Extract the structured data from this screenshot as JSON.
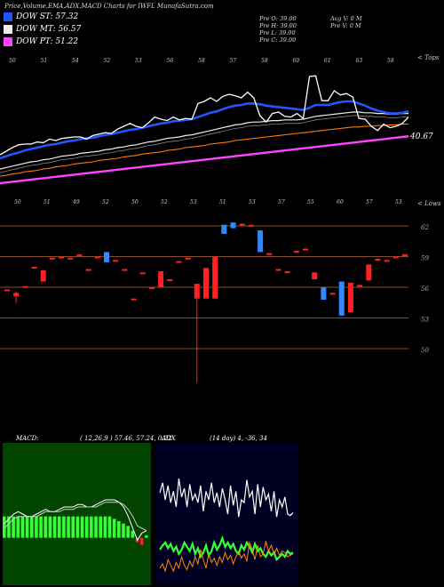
{
  "header": "Price,Volume,EMA,ADX,MACD Charts for IWFL MunafaSutra.com",
  "legend": [
    {
      "label": "DOW ST: 57.32",
      "color": "#2255ff"
    },
    {
      "label": "DOW MT: 56.57",
      "color": "#eeeeee"
    },
    {
      "label": "DOW PT: 51.22",
      "color": "#ff44ff"
    }
  ],
  "ohlc": {
    "open": "Pre O: 39.00",
    "high": "Pre H: 39.00",
    "low": "Pre L: 39.00",
    "close": "Pre C: 39.00",
    "avg_vol": "Avg V: 0 M",
    "pre_vol": "Pre V: 0 M"
  },
  "colors": {
    "ema_short": "#2255ff",
    "ema_long": "#ff44ff",
    "up": "#ff2222",
    "down": "#3388ff",
    "grid": "#b86a30",
    "adx_plus": "#33ff33",
    "adx_minus": "#ff8800"
  },
  "price_panel": {
    "top_label": "< Tops",
    "bottom_label": "< Lows",
    "last_price": "40.67",
    "top_labels": [
      "50",
      "51",
      "54",
      "52",
      "53",
      "56",
      "58",
      "57",
      "58",
      "60",
      "61",
      "63",
      "58"
    ],
    "bottom_labels": [
      "50",
      "51",
      "49",
      "52",
      "50",
      "52",
      "53",
      "51",
      "53",
      "57",
      "55",
      "60",
      "57",
      "53"
    ]
  },
  "chart_data": [
    {
      "type": "line",
      "title": "Price / EMA",
      "series": [
        {
          "name": "Price",
          "color": "#ffffff",
          "values": [
            37,
            37.5,
            38,
            38.4,
            38.5,
            38.5,
            38.8,
            38.7,
            39.2,
            39,
            39.3,
            39.4,
            39.5,
            39.5,
            39.2,
            39.7,
            39.9,
            40.1,
            40,
            40.6,
            41,
            41.4,
            41,
            40.8,
            41.5,
            42.3,
            42,
            41.8,
            42.3,
            41.9,
            42.1,
            42,
            44.2,
            44.5,
            45,
            44.5,
            45.2,
            45.5,
            45.3,
            45,
            45.8,
            45,
            42.5,
            41.6,
            42.8,
            43,
            42.4,
            42.3,
            42.8,
            42.1,
            48,
            48.1,
            44.6,
            44.6,
            46,
            45.4,
            45.6,
            45.1,
            42.1,
            42,
            41,
            40.4,
            41.3,
            40.8,
            41,
            41.4,
            42.3
          ]
        },
        {
          "name": "DOW ST",
          "color": "#2255ff",
          "values": [
            36.5,
            36.8,
            37.1,
            37.3,
            37.6,
            37.8,
            38,
            38.2,
            38.4,
            38.5,
            38.7,
            38.9,
            39,
            39.2,
            39.3,
            39.4,
            39.6,
            39.8,
            39.9,
            40.1,
            40.3,
            40.5,
            40.6,
            40.8,
            41,
            41.2,
            41.4,
            41.5,
            41.7,
            41.8,
            41.9,
            42,
            42.3,
            42.6,
            42.9,
            43.1,
            43.4,
            43.7,
            43.9,
            44,
            44.2,
            44.2,
            44.1,
            43.9,
            43.8,
            43.7,
            43.6,
            43.5,
            43.4,
            43.3,
            43.6,
            44,
            44,
            44,
            44.2,
            44.4,
            44.5,
            44.5,
            44.2,
            43.9,
            43.5,
            43.2,
            43,
            42.8,
            42.8,
            42.9,
            43.1
          ]
        },
        {
          "name": "DOW MT",
          "color": "#eeeeee",
          "values": [
            35,
            35.2,
            35.4,
            35.6,
            35.8,
            36,
            36.1,
            36.3,
            36.4,
            36.6,
            36.8,
            36.9,
            37,
            37.2,
            37.3,
            37.4,
            37.5,
            37.7,
            37.8,
            38,
            38.1,
            38.3,
            38.4,
            38.6,
            38.8,
            38.9,
            39.1,
            39.3,
            39.4,
            39.5,
            39.7,
            39.8,
            40,
            40.2,
            40.4,
            40.6,
            40.8,
            41,
            41.2,
            41.3,
            41.5,
            41.6,
            41.6,
            41.7,
            41.8,
            41.8,
            41.9,
            41.9,
            41.9,
            42,
            42.2,
            42.4,
            42.5,
            42.6,
            42.7,
            42.8,
            42.9,
            43,
            43,
            42.9,
            42.9,
            42.8,
            42.8,
            42.7,
            42.7,
            42.8,
            42.8
          ]
        },
        {
          "name": "EMA 50",
          "color": "#ff7700",
          "values": [
            34,
            34.1,
            34.3,
            34.4,
            34.6,
            34.7,
            34.8,
            35,
            35.1,
            35.3,
            35.4,
            35.5,
            35.7,
            35.8,
            35.9,
            36,
            36.2,
            36.3,
            36.4,
            36.5,
            36.7,
            36.8,
            36.9,
            37.1,
            37.2,
            37.3,
            37.4,
            37.6,
            37.7,
            37.8,
            38,
            38.1,
            38.2,
            38.3,
            38.5,
            38.6,
            38.7,
            38.8,
            39,
            39.1,
            39.2,
            39.3,
            39.4,
            39.5,
            39.6,
            39.7,
            39.8,
            39.9,
            40,
            40.1,
            40.2,
            40.3,
            40.4,
            40.5,
            40.6,
            40.7,
            40.8,
            40.9,
            40.9,
            41,
            41,
            41.1,
            41.1,
            41.2,
            41.2,
            41.3,
            41.3
          ]
        },
        {
          "name": "DOW PT",
          "color": "#ff44ff",
          "values": [
            33,
            33.1,
            33.2,
            33.3,
            33.4,
            33.5,
            33.6,
            33.7,
            33.8,
            33.9,
            34,
            34.1,
            34.2,
            34.3,
            34.4,
            34.5,
            34.6,
            34.7,
            34.8,
            34.9,
            35,
            35.1,
            35.2,
            35.3,
            35.4,
            35.5,
            35.6,
            35.7,
            35.8,
            35.9,
            36,
            36.1,
            36.2,
            36.3,
            36.4,
            36.5,
            36.6,
            36.7,
            36.8,
            36.9,
            37,
            37.1,
            37.2,
            37.3,
            37.4,
            37.5,
            37.6,
            37.7,
            37.8,
            37.9,
            38,
            38.1,
            38.2,
            38.3,
            38.4,
            38.5,
            38.6,
            38.7,
            38.8,
            38.9,
            39,
            39.1,
            39.2,
            39.3,
            39.4,
            39.5,
            39.6
          ]
        }
      ]
    },
    {
      "type": "candlestick",
      "title": "Short candles",
      "y_ticks": [
        "62",
        "59",
        "56",
        "53",
        "50"
      ],
      "candles": [
        {
          "i": 0,
          "o": 55.8,
          "c": 55.8,
          "h": 55.8,
          "l": 55.8
        },
        {
          "i": 1,
          "o": 55.2,
          "c": 55.5,
          "h": 55.6,
          "l": 54.6
        },
        {
          "i": 2,
          "o": 56.1,
          "c": 56.1,
          "h": 56.1,
          "l": 56.1
        },
        {
          "i": 3,
          "o": 57.8,
          "c": 57.8,
          "h": 57.8,
          "l": 57.8
        },
        {
          "i": 4,
          "o": 56.5,
          "c": 57.5,
          "h": 57.5,
          "l": 56.5
        },
        {
          "i": 5,
          "o": 58.6,
          "c": 58.6,
          "h": 58.6,
          "l": 58.6
        },
        {
          "i": 6,
          "o": 58.7,
          "c": 58.7,
          "h": 58.7,
          "l": 58.7
        },
        {
          "i": 7,
          "o": 58.6,
          "c": 58.6,
          "h": 58.6,
          "l": 58.6
        },
        {
          "i": 8,
          "o": 58.9,
          "c": 58.9,
          "h": 58.9,
          "l": 58.9
        },
        {
          "i": 9,
          "o": 57.6,
          "c": 57.6,
          "h": 57.6,
          "l": 57.6
        },
        {
          "i": 10,
          "o": 58.7,
          "c": 58.7,
          "h": 58.7,
          "l": 58.7
        },
        {
          "i": 11,
          "o": 59.1,
          "c": 58.2,
          "h": 59.1,
          "l": 58.2
        },
        {
          "i": 12,
          "o": 58.4,
          "c": 58.4,
          "h": 58.4,
          "l": 58.4
        },
        {
          "i": 13,
          "o": 57.6,
          "c": 57.6,
          "h": 57.6,
          "l": 57.6
        },
        {
          "i": 14,
          "o": 55.0,
          "c": 55.0,
          "h": 55.0,
          "l": 55.0
        },
        {
          "i": 15,
          "o": 57.3,
          "c": 57.3,
          "h": 57.3,
          "l": 57.3
        },
        {
          "i": 16,
          "o": 56.0,
          "c": 56.0,
          "h": 56.0,
          "l": 56.0
        },
        {
          "i": 17,
          "o": 56.0,
          "c": 57.4,
          "h": 57.4,
          "l": 56.0
        },
        {
          "i": 18,
          "o": 56.7,
          "c": 56.7,
          "h": 56.7,
          "l": 56.7
        },
        {
          "i": 19,
          "o": 58.3,
          "c": 58.3,
          "h": 58.3,
          "l": 58.3
        },
        {
          "i": 20,
          "o": 58.6,
          "c": 58.6,
          "h": 58.6,
          "l": 58.6
        },
        {
          "i": 21,
          "o": 55.0,
          "c": 56.3,
          "h": 56.3,
          "l": 47.6
        },
        {
          "i": 22,
          "o": 55.0,
          "c": 57.7,
          "h": 57.7,
          "l": 55.0
        },
        {
          "i": 23,
          "o": 55.0,
          "c": 58.7,
          "h": 58.7,
          "l": 55.0
        },
        {
          "i": 24,
          "o": 61.5,
          "c": 60.7,
          "h": 61.5,
          "l": 60.7
        },
        {
          "i": 25,
          "o": 61.7,
          "c": 61.2,
          "h": 61.7,
          "l": 61.2
        },
        {
          "i": 26,
          "o": 61.6,
          "c": 61.6,
          "h": 61.6,
          "l": 61.6
        },
        {
          "i": 27,
          "o": 61.5,
          "c": 61.5,
          "h": 61.5,
          "l": 61.5
        },
        {
          "i": 28,
          "o": 61.0,
          "c": 59.1,
          "h": 61.0,
          "l": 59.1
        },
        {
          "i": 29,
          "o": 59.0,
          "c": 59.0,
          "h": 59.0,
          "l": 59.0
        },
        {
          "i": 30,
          "o": 57.6,
          "c": 57.6,
          "h": 57.6,
          "l": 57.6
        },
        {
          "i": 31,
          "o": 57.4,
          "c": 57.4,
          "h": 57.4,
          "l": 57.4
        },
        {
          "i": 32,
          "o": 59.2,
          "c": 59.2,
          "h": 59.2,
          "l": 59.2
        },
        {
          "i": 33,
          "o": 59.4,
          "c": 59.4,
          "h": 59.4,
          "l": 59.4
        },
        {
          "i": 34,
          "o": 56.7,
          "c": 57.3,
          "h": 57.3,
          "l": 56.7
        },
        {
          "i": 35,
          "o": 56.0,
          "c": 54.9,
          "h": 56.0,
          "l": 54.9
        },
        {
          "i": 36,
          "o": 55.5,
          "c": 55.5,
          "h": 55.5,
          "l": 55.5
        },
        {
          "i": 37,
          "o": 56.5,
          "c": 53.5,
          "h": 56.5,
          "l": 53.5
        },
        {
          "i": 38,
          "o": 53.8,
          "c": 56.4,
          "h": 56.4,
          "l": 53.8
        },
        {
          "i": 39,
          "o": 56.2,
          "c": 56.2,
          "h": 56.2,
          "l": 56.2
        },
        {
          "i": 40,
          "o": 56.6,
          "c": 58.0,
          "h": 58.0,
          "l": 56.6
        },
        {
          "i": 41,
          "o": 58.5,
          "c": 58.5,
          "h": 58.5,
          "l": 58.5
        },
        {
          "i": 42,
          "o": 58.4,
          "c": 58.4,
          "h": 58.4,
          "l": 58.4
        },
        {
          "i": 43,
          "o": 58.7,
          "c": 58.7,
          "h": 58.7,
          "l": 58.7
        },
        {
          "i": 44,
          "o": 58.9,
          "c": 58.9,
          "h": 58.9,
          "l": 58.9
        }
      ]
    },
    {
      "type": "line",
      "title": "MACD",
      "label": "MACD:",
      "params": "( 12,26,9 ) 57.46, 57.24, 0.22",
      "series": [
        {
          "name": "MACD",
          "color": "#ffffff",
          "values": [
            0.6,
            0.8,
            1.0,
            1.1,
            1.0,
            0.9,
            0.9,
            1.0,
            1.1,
            1.2,
            1.1,
            1.1,
            1.2,
            1.3,
            1.3,
            1.3,
            1.4,
            1.4,
            1.3,
            1.3,
            1.4,
            1.5,
            1.6,
            1.6,
            1.6,
            1.5,
            1.3,
            0.9,
            0.4,
            -0.1,
            0.2,
            0.3
          ]
        },
        {
          "name": "Signal",
          "color": "#cccccc",
          "values": [
            0.4,
            0.6,
            0.8,
            0.9,
            0.9,
            0.9,
            0.9,
            0.9,
            1.0,
            1.1,
            1.1,
            1.1,
            1.1,
            1.2,
            1.2,
            1.2,
            1.3,
            1.3,
            1.3,
            1.3,
            1.3,
            1.4,
            1.5,
            1.5,
            1.5,
            1.5,
            1.4,
            1.2,
            0.9,
            0.5,
            0.4,
            0.3
          ]
        },
        {
          "name": "Histogram",
          "color": "#33ff33",
          "values": [
            0.9,
            0.9,
            0.9,
            0.9,
            0.9,
            0.9,
            0.9,
            0.9,
            0.9,
            0.9,
            0.9,
            0.9,
            0.9,
            0.9,
            0.9,
            0.9,
            0.9,
            0.9,
            0.9,
            0.9,
            0.9,
            0.9,
            0.9,
            0.9,
            0.8,
            0.7,
            0.6,
            0.5,
            0.3,
            -0.2,
            -0.3,
            0.1
          ]
        }
      ]
    },
    {
      "type": "line",
      "title": "ADX",
      "label": "ADX",
      "params": "(14 day) 4, -36, 34",
      "series": [
        {
          "name": "ADX",
          "color": "#ffffff",
          "values": [
            65,
            72,
            60,
            70,
            58,
            66,
            55,
            75,
            62,
            68,
            55,
            71,
            60,
            64,
            58,
            70,
            52,
            66,
            60,
            72,
            58,
            65,
            55,
            68,
            60,
            50,
            70,
            56,
            66,
            48,
            60,
            58,
            74,
            62,
            66,
            50,
            71,
            55,
            69,
            60,
            64,
            52,
            66,
            48,
            60,
            55,
            62,
            50,
            49,
            51
          ]
        },
        {
          "name": "+DI",
          "color": "#33ff33",
          "values": [
            25,
            28,
            30,
            26,
            29,
            24,
            27,
            22,
            25,
            30,
            27,
            24,
            29,
            22,
            26,
            20,
            23,
            28,
            21,
            24,
            30,
            25,
            28,
            33,
            27,
            30,
            26,
            29,
            24,
            22,
            28,
            25,
            30,
            27,
            23,
            29,
            24,
            26,
            22,
            20,
            24,
            21,
            23,
            18,
            20,
            22,
            20,
            24,
            22,
            23
          ]
        },
        {
          "name": "-DI",
          "color": "#ff8800",
          "values": [
            12,
            15,
            10,
            18,
            14,
            10,
            16,
            12,
            20,
            14,
            11,
            17,
            13,
            20,
            15,
            25,
            18,
            12,
            22,
            16,
            19,
            14,
            20,
            16,
            23,
            18,
            21,
            15,
            20,
            24,
            19,
            22,
            17,
            30,
            25,
            18,
            28,
            20,
            22,
            31,
            24,
            28,
            22,
            26,
            21,
            24,
            23,
            20,
            21,
            22
          ]
        }
      ]
    }
  ]
}
